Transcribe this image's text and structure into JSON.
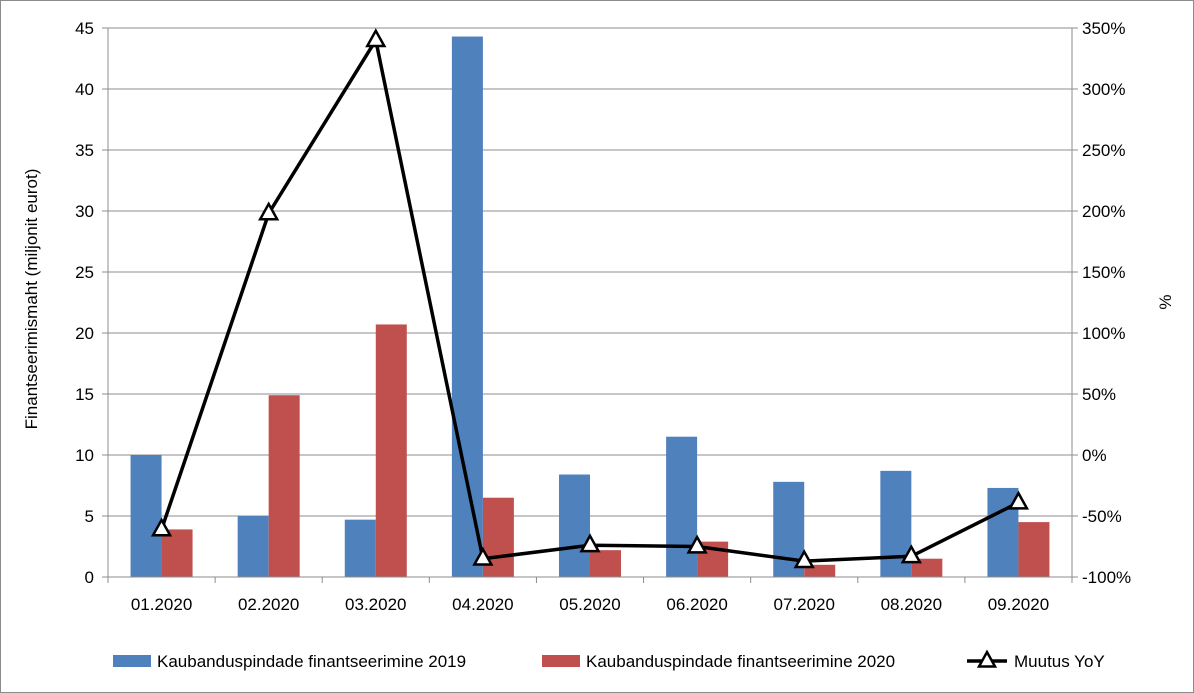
{
  "chart_data": {
    "type": "bar",
    "categories": [
      "01.2020",
      "02.2020",
      "03.2020",
      "04.2020",
      "05.2020",
      "06.2020",
      "07.2020",
      "08.2020",
      "09.2020"
    ],
    "series": [
      {
        "name": "Kaubanduspindade finantseerimine 2019",
        "type": "bar",
        "axis": "left",
        "color": "#4f81bd",
        "values": [
          10.0,
          5.0,
          4.7,
          44.3,
          8.4,
          11.5,
          7.8,
          8.7,
          7.3
        ]
      },
      {
        "name": "Kaubanduspindade finantseerimine 2020",
        "type": "bar",
        "axis": "left",
        "color": "#c0504d",
        "values": [
          3.9,
          14.9,
          20.7,
          6.5,
          2.2,
          2.9,
          1.0,
          1.5,
          4.5
        ]
      },
      {
        "name": "Muutus YoY",
        "type": "line",
        "axis": "right",
        "color": "#000000",
        "marker": "triangle",
        "values": [
          -61,
          198,
          340,
          -85,
          -74,
          -75,
          -87,
          -83,
          -39
        ]
      }
    ],
    "ylabel": "Finantseerimismaht (miljonit eurot)",
    "ylabel_right": "%",
    "ylim": [
      0,
      45
    ],
    "yticks": [
      "0",
      "5",
      "10",
      "15",
      "20",
      "25",
      "30",
      "35",
      "40",
      "45"
    ],
    "ylim_right": [
      -100,
      350
    ],
    "yticks_right": [
      "-100%",
      "-50%",
      "0%",
      "50%",
      "100%",
      "150%",
      "200%",
      "250%",
      "300%",
      "350%"
    ],
    "grid": true,
    "legend_position": "bottom"
  }
}
